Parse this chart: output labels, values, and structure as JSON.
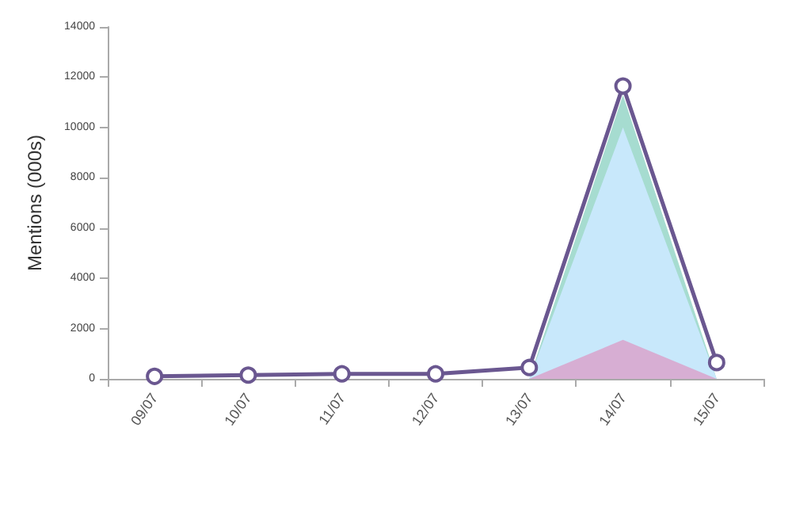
{
  "chart_data": {
    "type": "line",
    "ylabel": "Mentions (000s)",
    "categories": [
      "09/07",
      "10/07",
      "11/07",
      "12/07",
      "13/07",
      "14/07",
      "15/07"
    ],
    "ylim": [
      0,
      14000
    ],
    "yticks": [
      0,
      2000,
      4000,
      6000,
      8000,
      10000,
      12000,
      14000
    ],
    "grid": false,
    "series": [
      {
        "type": "area",
        "color": "#a6dcd0",
        "values": [
          null,
          null,
          null,
          null,
          0,
          11300,
          0
        ]
      },
      {
        "type": "area",
        "color": "#c8e8fb",
        "values": [
          null,
          null,
          null,
          null,
          0,
          10000,
          0
        ]
      },
      {
        "type": "area",
        "color": "#d7aed3",
        "values": [
          null,
          null,
          null,
          null,
          0,
          1550,
          0
        ]
      },
      {
        "color": "#6a5790",
        "marker": "circle",
        "values": [
          100,
          150,
          200,
          200,
          450,
          11650,
          650
        ]
      }
    ]
  }
}
